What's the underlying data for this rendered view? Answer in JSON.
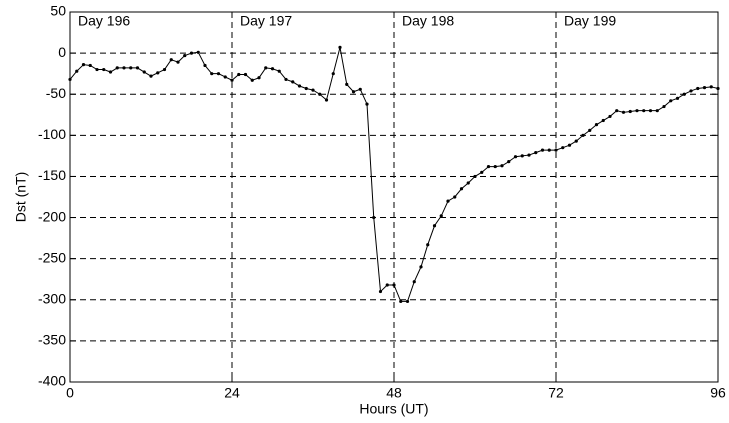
{
  "chart_data": {
    "type": "line",
    "xlabel": "Hours (UT)",
    "ylabel": "Dst (nT)",
    "annotations": [
      "Day 196",
      "Day 197",
      "Day 198",
      "Day 199"
    ],
    "x": [
      0,
      1,
      2,
      3,
      4,
      5,
      6,
      7,
      8,
      9,
      10,
      11,
      12,
      13,
      14,
      15,
      16,
      17,
      18,
      19,
      20,
      21,
      22,
      23,
      24,
      25,
      26,
      27,
      28,
      29,
      30,
      31,
      32,
      33,
      34,
      35,
      36,
      37,
      38,
      39,
      40,
      41,
      42,
      43,
      44,
      45,
      46,
      47,
      48,
      49,
      50,
      51,
      52,
      53,
      54,
      55,
      56,
      57,
      58,
      59,
      60,
      61,
      62,
      63,
      64,
      65,
      66,
      67,
      68,
      69,
      70,
      71,
      72,
      73,
      74,
      75,
      76,
      77,
      78,
      79,
      80,
      81,
      82,
      83,
      84,
      85,
      86,
      87,
      88,
      89,
      90,
      91,
      92,
      93,
      94,
      95,
      96
    ],
    "series": [
      {
        "name": "Dst",
        "color": "#000000",
        "values": [
          -32,
          -22,
          -14,
          -15,
          -20,
          -20,
          -23,
          -18,
          -18,
          -18,
          -18,
          -23,
          -28,
          -24,
          -20,
          -8,
          -11,
          -3,
          0,
          1,
          -15,
          -25,
          -25,
          -29,
          -33,
          -26,
          -26,
          -33,
          -30,
          -18,
          -19,
          -22,
          -32,
          -35,
          -40,
          -43,
          -45,
          -50,
          -57,
          -25,
          7,
          -38,
          -47,
          -44,
          -62,
          -200,
          -290,
          -282,
          -282,
          -302,
          -302,
          -278,
          -260,
          -233,
          -210,
          -198,
          -180,
          -175,
          -165,
          -158,
          -150,
          -145,
          -138,
          -138,
          -137,
          -132,
          -126,
          -125,
          -124,
          -121,
          -118,
          -118,
          -118,
          -115,
          -112,
          -107,
          -100,
          -94,
          -87,
          -82,
          -77,
          -70,
          -72,
          -71,
          -70,
          -70,
          -70,
          -70,
          -65,
          -58,
          -55,
          -50,
          -46,
          -43,
          -42,
          -41,
          -43
        ]
      }
    ],
    "xlim": [
      0,
      96
    ],
    "xticks": [
      0,
      24,
      48,
      72,
      96
    ],
    "ylim": [
      -400,
      50
    ],
    "yticks": [
      -400,
      -350,
      -300,
      -250,
      -200,
      -150,
      -100,
      -50,
      0,
      50
    ],
    "grid": true
  }
}
